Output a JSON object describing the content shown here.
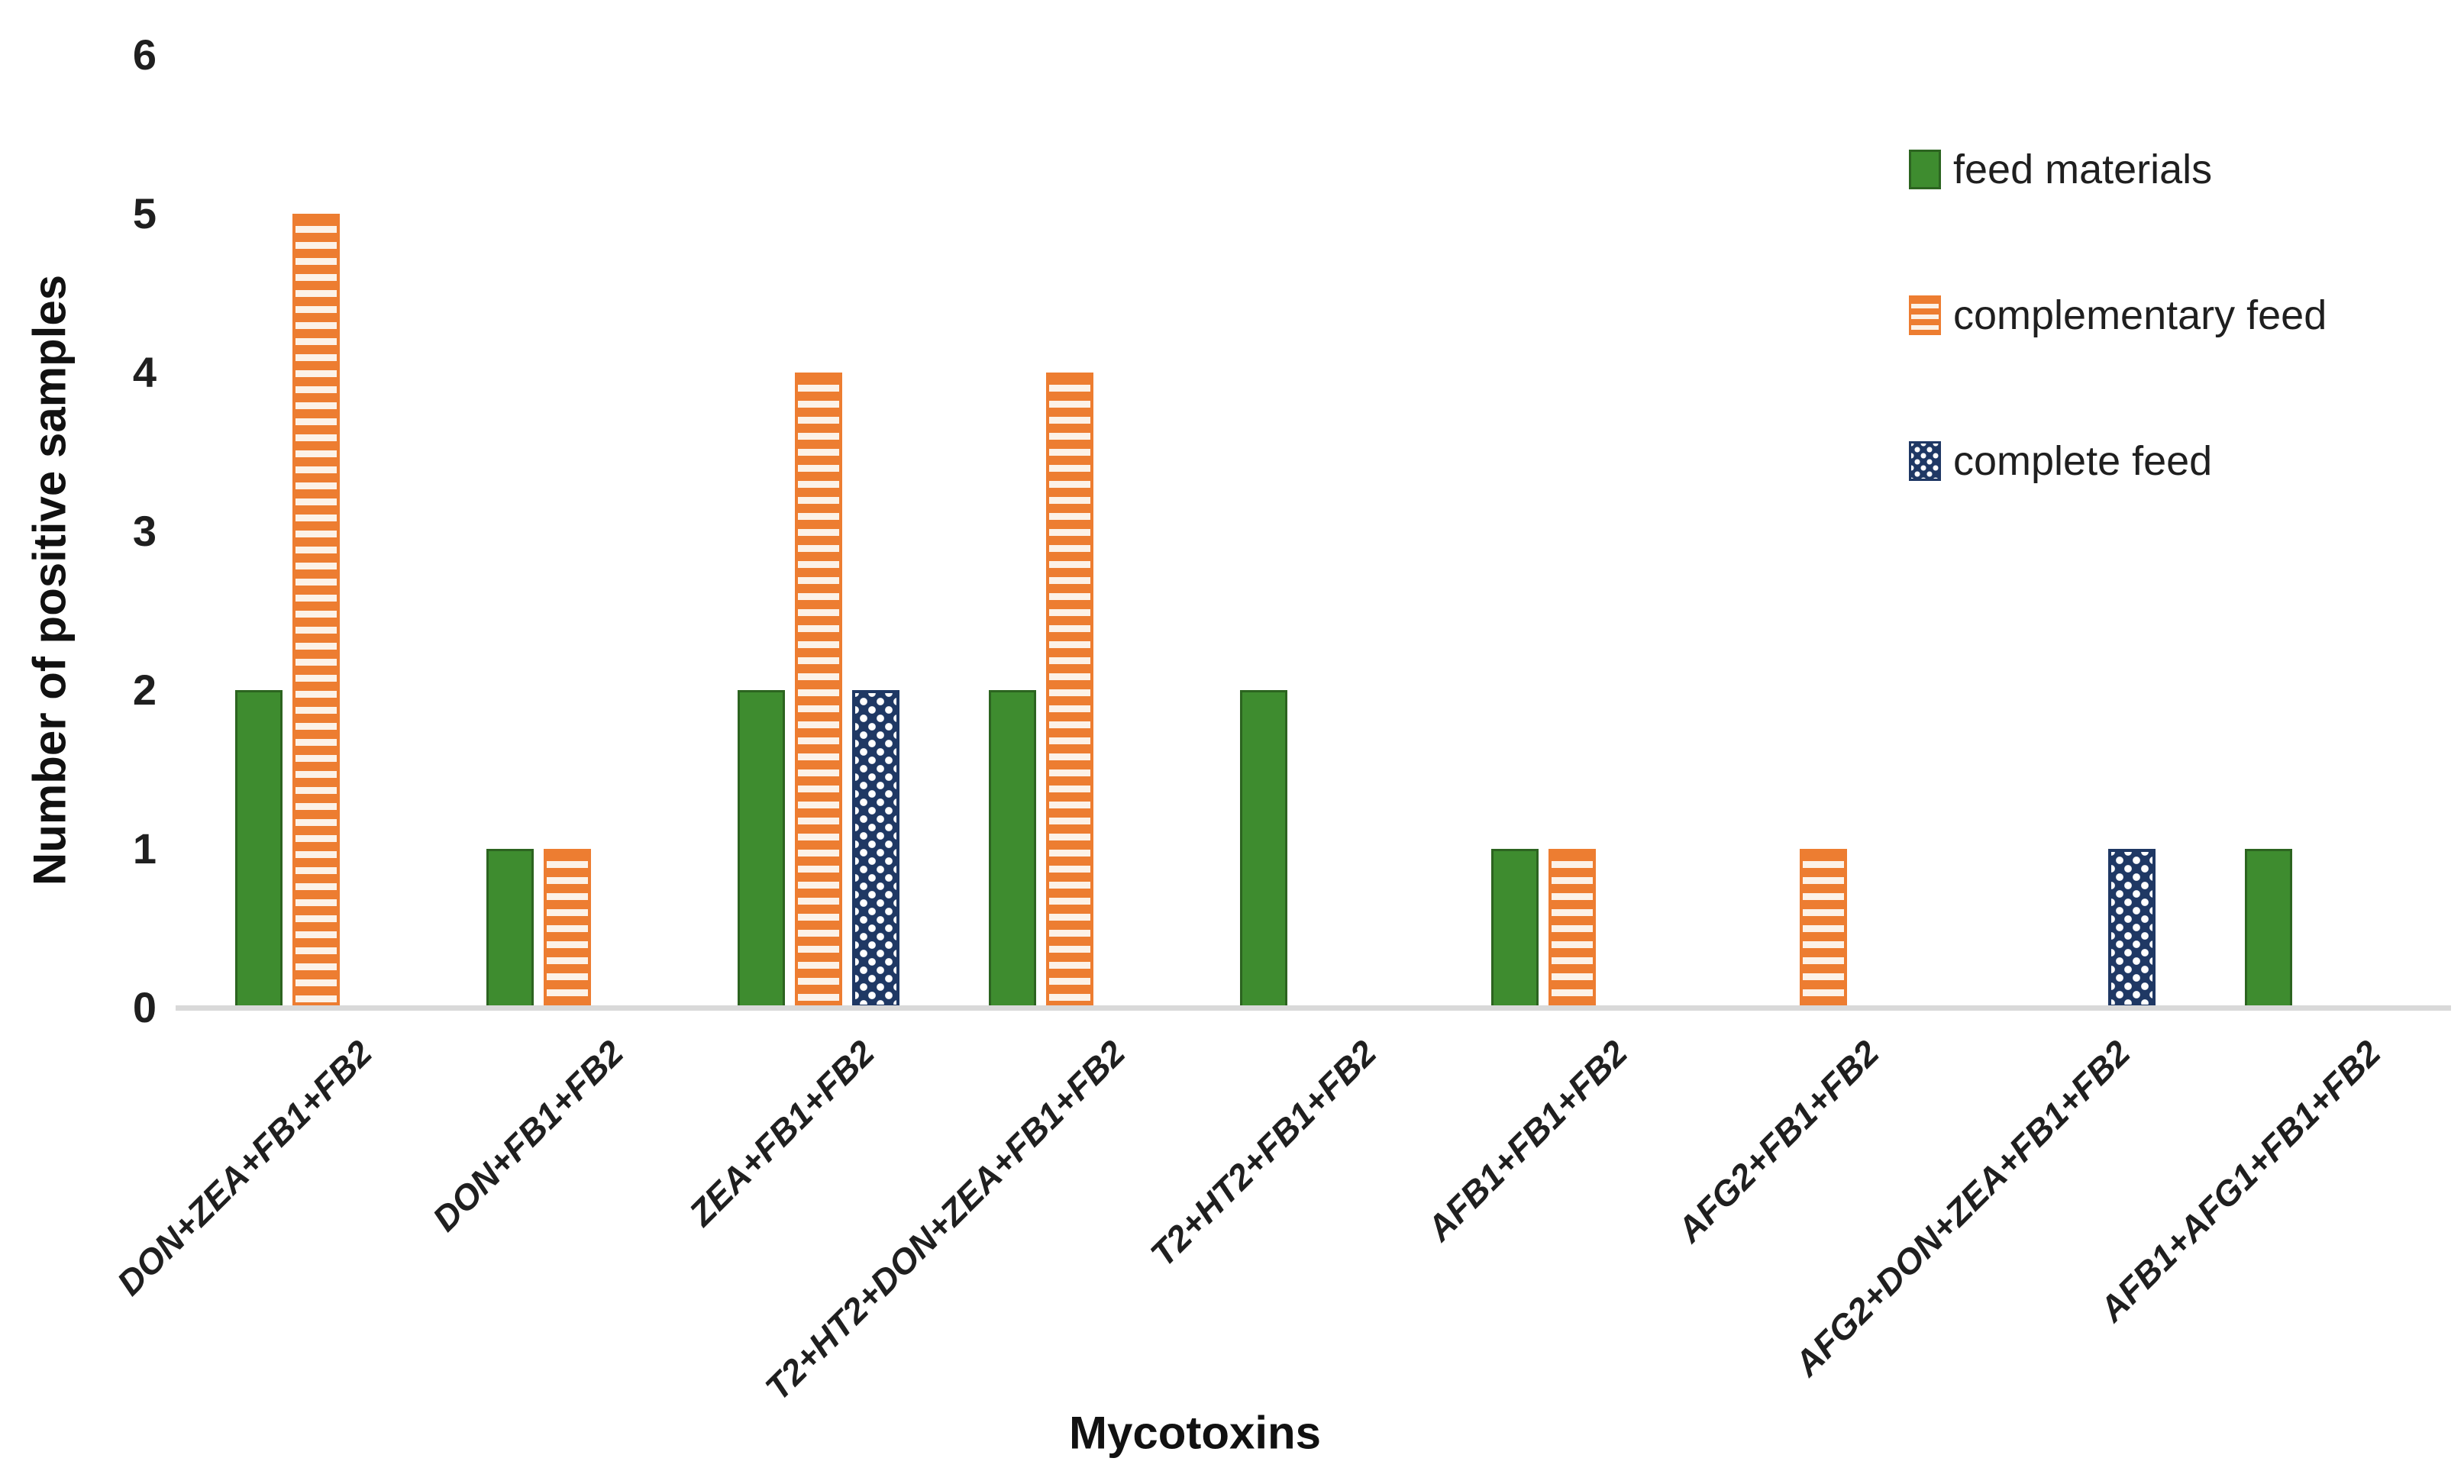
{
  "figure": {
    "background": "#ffffff",
    "axis_line_color": "#d9d9d9",
    "text_color": "#1f1f1f"
  },
  "chart_data": {
    "type": "bar",
    "title": "",
    "xlabel": "Mycotoxins",
    "ylabel": "Number of positive samples",
    "ylim": [
      0,
      6
    ],
    "yticks": [
      0,
      1,
      2,
      3,
      4,
      5,
      6
    ],
    "grid": false,
    "legend_position": "top-right",
    "categories": [
      "DON+ZEA+FB1+FB2",
      "DON+FB1+FB2",
      "ZEA+FB1+FB2",
      "T2+HT2+DON+ZEA+FB1+FB2",
      "T2+HT2+FB1+FB2",
      "AFB1+FB1+FB2",
      "AFG2+FB1+FB2",
      "AFG2+DON+ZEA+FB1+FB2",
      "AFB1+AFG1+FB1+FB2"
    ],
    "series": [
      {
        "name": "feed materials",
        "key": "feed-materials",
        "color": "#3e8c2f",
        "border_color": "#2c6420",
        "pattern": "solid",
        "values": [
          2,
          1,
          2,
          2,
          2,
          1,
          0,
          0,
          1
        ]
      },
      {
        "name": "complementary feed",
        "key": "complementary-feed",
        "color": "#ed7d31",
        "stripe_gap_color": "#fcf2e8",
        "pattern": "horizontal-stripes",
        "values": [
          5,
          1,
          4,
          4,
          0,
          1,
          1,
          0,
          0
        ]
      },
      {
        "name": "complete feed",
        "key": "complete-feed",
        "color": "#1f3864",
        "dot_color": "#ffffff",
        "pattern": "dots",
        "values": [
          0,
          0,
          2,
          0,
          0,
          0,
          0,
          1,
          0
        ]
      }
    ]
  }
}
